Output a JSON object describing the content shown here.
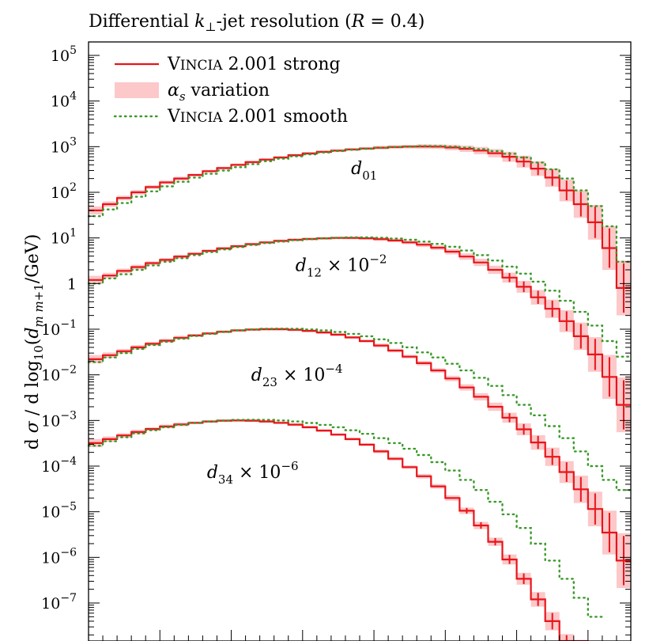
{
  "chart_data": {
    "type": "line",
    "title": "Differential k⊥-jet resolution (R = 0.4)",
    "ylabel": "d σ / d log10(d m m+1/GeV)",
    "xlabel": "",
    "x_range": [
      0,
      38
    ],
    "yscale": "log",
    "ylim": [
      1e-08,
      100000.0
    ],
    "y_tick_labels": [
      "10^5",
      "10^4",
      "10^3",
      "10^2",
      "10^1",
      "1",
      "10^-1",
      "10^-2",
      "10^-3",
      "10^-4",
      "10^-5",
      "10^-6",
      "10^-7"
    ],
    "y_tick_values": [
      100000,
      10000,
      1000,
      100,
      10,
      1,
      0.1,
      0.01,
      0.001,
      0.0001,
      1e-05,
      1e-06,
      1e-07
    ],
    "legend": {
      "position": "top-left",
      "entries": [
        {
          "label_sc": "Vincia",
          "label_rest": " 2.001 strong",
          "style": "red-line"
        },
        {
          "label_sc": "",
          "label_rest": "αs variation",
          "style": "pink-band"
        },
        {
          "label_sc": "Vincia",
          "label_rest": " 2.001 smooth",
          "style": "green-dotted"
        }
      ]
    },
    "annotations": [
      {
        "text": "d01",
        "x": 18.4,
        "y": 250
      },
      {
        "text": "d12 × 10^-2",
        "x": 14.5,
        "y": 1.9
      },
      {
        "text": "d23 × 10^-4",
        "x": 11.4,
        "y": 0.0075
      },
      {
        "text": "d34 × 10^-6",
        "x": 8.3,
        "y": 5.5e-05
      }
    ],
    "series": [
      {
        "name": "d01",
        "strong": [
          40,
          55,
          75,
          100,
          130,
          165,
          200,
          240,
          290,
          340,
          400,
          460,
          520,
          580,
          650,
          710,
          770,
          820,
          870,
          910,
          950,
          980,
          1000,
          1010,
          1000,
          960,
          900,
          820,
          720,
          600,
          470,
          330,
          210,
          110,
          55,
          22,
          6,
          0.8
        ],
        "smooth": [
          30,
          42,
          58,
          80,
          105,
          135,
          170,
          210,
          255,
          300,
          355,
          415,
          480,
          545,
          615,
          680,
          745,
          800,
          855,
          900,
          945,
          985,
          1010,
          1030,
          1030,
          1000,
          950,
          885,
          800,
          700,
          580,
          450,
          320,
          200,
          110,
          50,
          18,
          3
        ]
      },
      {
        "name": "d12 x 1e-2",
        "strong": [
          1.2,
          1.5,
          1.9,
          2.3,
          2.8,
          3.3,
          3.9,
          4.5,
          5.2,
          5.9,
          6.6,
          7.3,
          8.0,
          8.6,
          9.1,
          9.5,
          9.8,
          10.0,
          10.0,
          9.8,
          9.4,
          8.8,
          8.0,
          7.1,
          6.1,
          5.0,
          3.9,
          2.9,
          2.0,
          1.35,
          0.85,
          0.5,
          0.28,
          0.15,
          0.07,
          0.028,
          0.009,
          0.0022
        ],
        "smooth": [
          1.0,
          1.3,
          1.6,
          2.0,
          2.5,
          3.0,
          3.6,
          4.2,
          4.9,
          5.6,
          6.3,
          7.0,
          7.7,
          8.3,
          8.9,
          9.4,
          9.8,
          10.1,
          10.3,
          10.3,
          10.1,
          9.7,
          9.1,
          8.3,
          7.4,
          6.4,
          5.3,
          4.2,
          3.2,
          2.35,
          1.65,
          1.1,
          0.7,
          0.42,
          0.24,
          0.12,
          0.055,
          0.025
        ]
      },
      {
        "name": "d23 x 1e-4",
        "strong": [
          0.022,
          0.027,
          0.033,
          0.04,
          0.048,
          0.056,
          0.065,
          0.073,
          0.081,
          0.088,
          0.094,
          0.098,
          0.1,
          0.1,
          0.097,
          0.092,
          0.085,
          0.076,
          0.066,
          0.055,
          0.044,
          0.034,
          0.025,
          0.018,
          0.0125,
          0.0083,
          0.0053,
          0.0033,
          0.002,
          0.00115,
          0.00064,
          0.00033,
          0.00016,
          7.4e-05,
          3.1e-05,
          1.15e-05,
          3.5e-06,
          8.5e-07
        ],
        "smooth": [
          0.019,
          0.024,
          0.03,
          0.037,
          0.045,
          0.053,
          0.062,
          0.071,
          0.079,
          0.087,
          0.094,
          0.099,
          0.102,
          0.103,
          0.102,
          0.099,
          0.094,
          0.087,
          0.079,
          0.07,
          0.06,
          0.05,
          0.04,
          0.031,
          0.024,
          0.0175,
          0.0125,
          0.0086,
          0.0057,
          0.0036,
          0.0022,
          0.0013,
          0.00075,
          0.00041,
          0.00021,
          0.0001,
          5e-05,
          3e-05
        ]
      },
      {
        "name": "d34 x 1e-6",
        "strong": [
          0.00032,
          0.00039,
          0.00047,
          0.00056,
          0.00065,
          0.00074,
          0.00082,
          0.00089,
          0.00095,
          0.00099,
          0.001,
          0.00099,
          0.00095,
          0.00089,
          0.00081,
          0.00071,
          0.0006,
          0.00049,
          0.00039,
          0.000295,
          0.00021,
          0.000145,
          9.5e-05,
          6e-05,
          3.6e-05,
          2e-05,
          1.05e-05,
          5e-06,
          2.2e-06,
          9e-07,
          3.4e-07,
          1.2e-07,
          4e-08,
          1.2e-08,
          4e-09
        ],
        "smooth": [
          0.00028,
          0.00035,
          0.00043,
          0.00052,
          0.00061,
          0.00071,
          0.0008,
          0.00088,
          0.00095,
          0.001,
          0.00103,
          0.00104,
          0.00103,
          0.001,
          0.00095,
          0.00088,
          0.0008,
          0.00071,
          0.00061,
          0.00051,
          0.00041,
          0.00032,
          0.00024,
          0.000175,
          0.000122,
          8e-05,
          5e-05,
          3e-05,
          1.65e-05,
          8.8e-06,
          4.4e-06,
          2e-06,
          8.5e-07,
          3.4e-07,
          1.3e-07,
          5e-08
        ]
      }
    ],
    "band_half_width_log10": [
      0.09,
      0.06,
      0.05,
      0.05,
      0.04,
      0.04,
      0.04,
      0.03,
      0.03,
      0.03,
      0.03,
      0.03,
      0.03,
      0.03,
      0.03,
      0.03,
      0.03,
      0.03,
      0.03,
      0.03,
      0.04,
      0.04,
      0.04,
      0.05,
      0.05,
      0.06,
      0.07,
      0.08,
      0.09,
      0.11,
      0.13,
      0.16,
      0.2,
      0.24,
      0.3,
      0.38,
      0.48,
      0.6
    ],
    "colors": {
      "strong": "#e8141a",
      "band": "#fcc8c9",
      "smooth": "#3a9a2a"
    }
  }
}
